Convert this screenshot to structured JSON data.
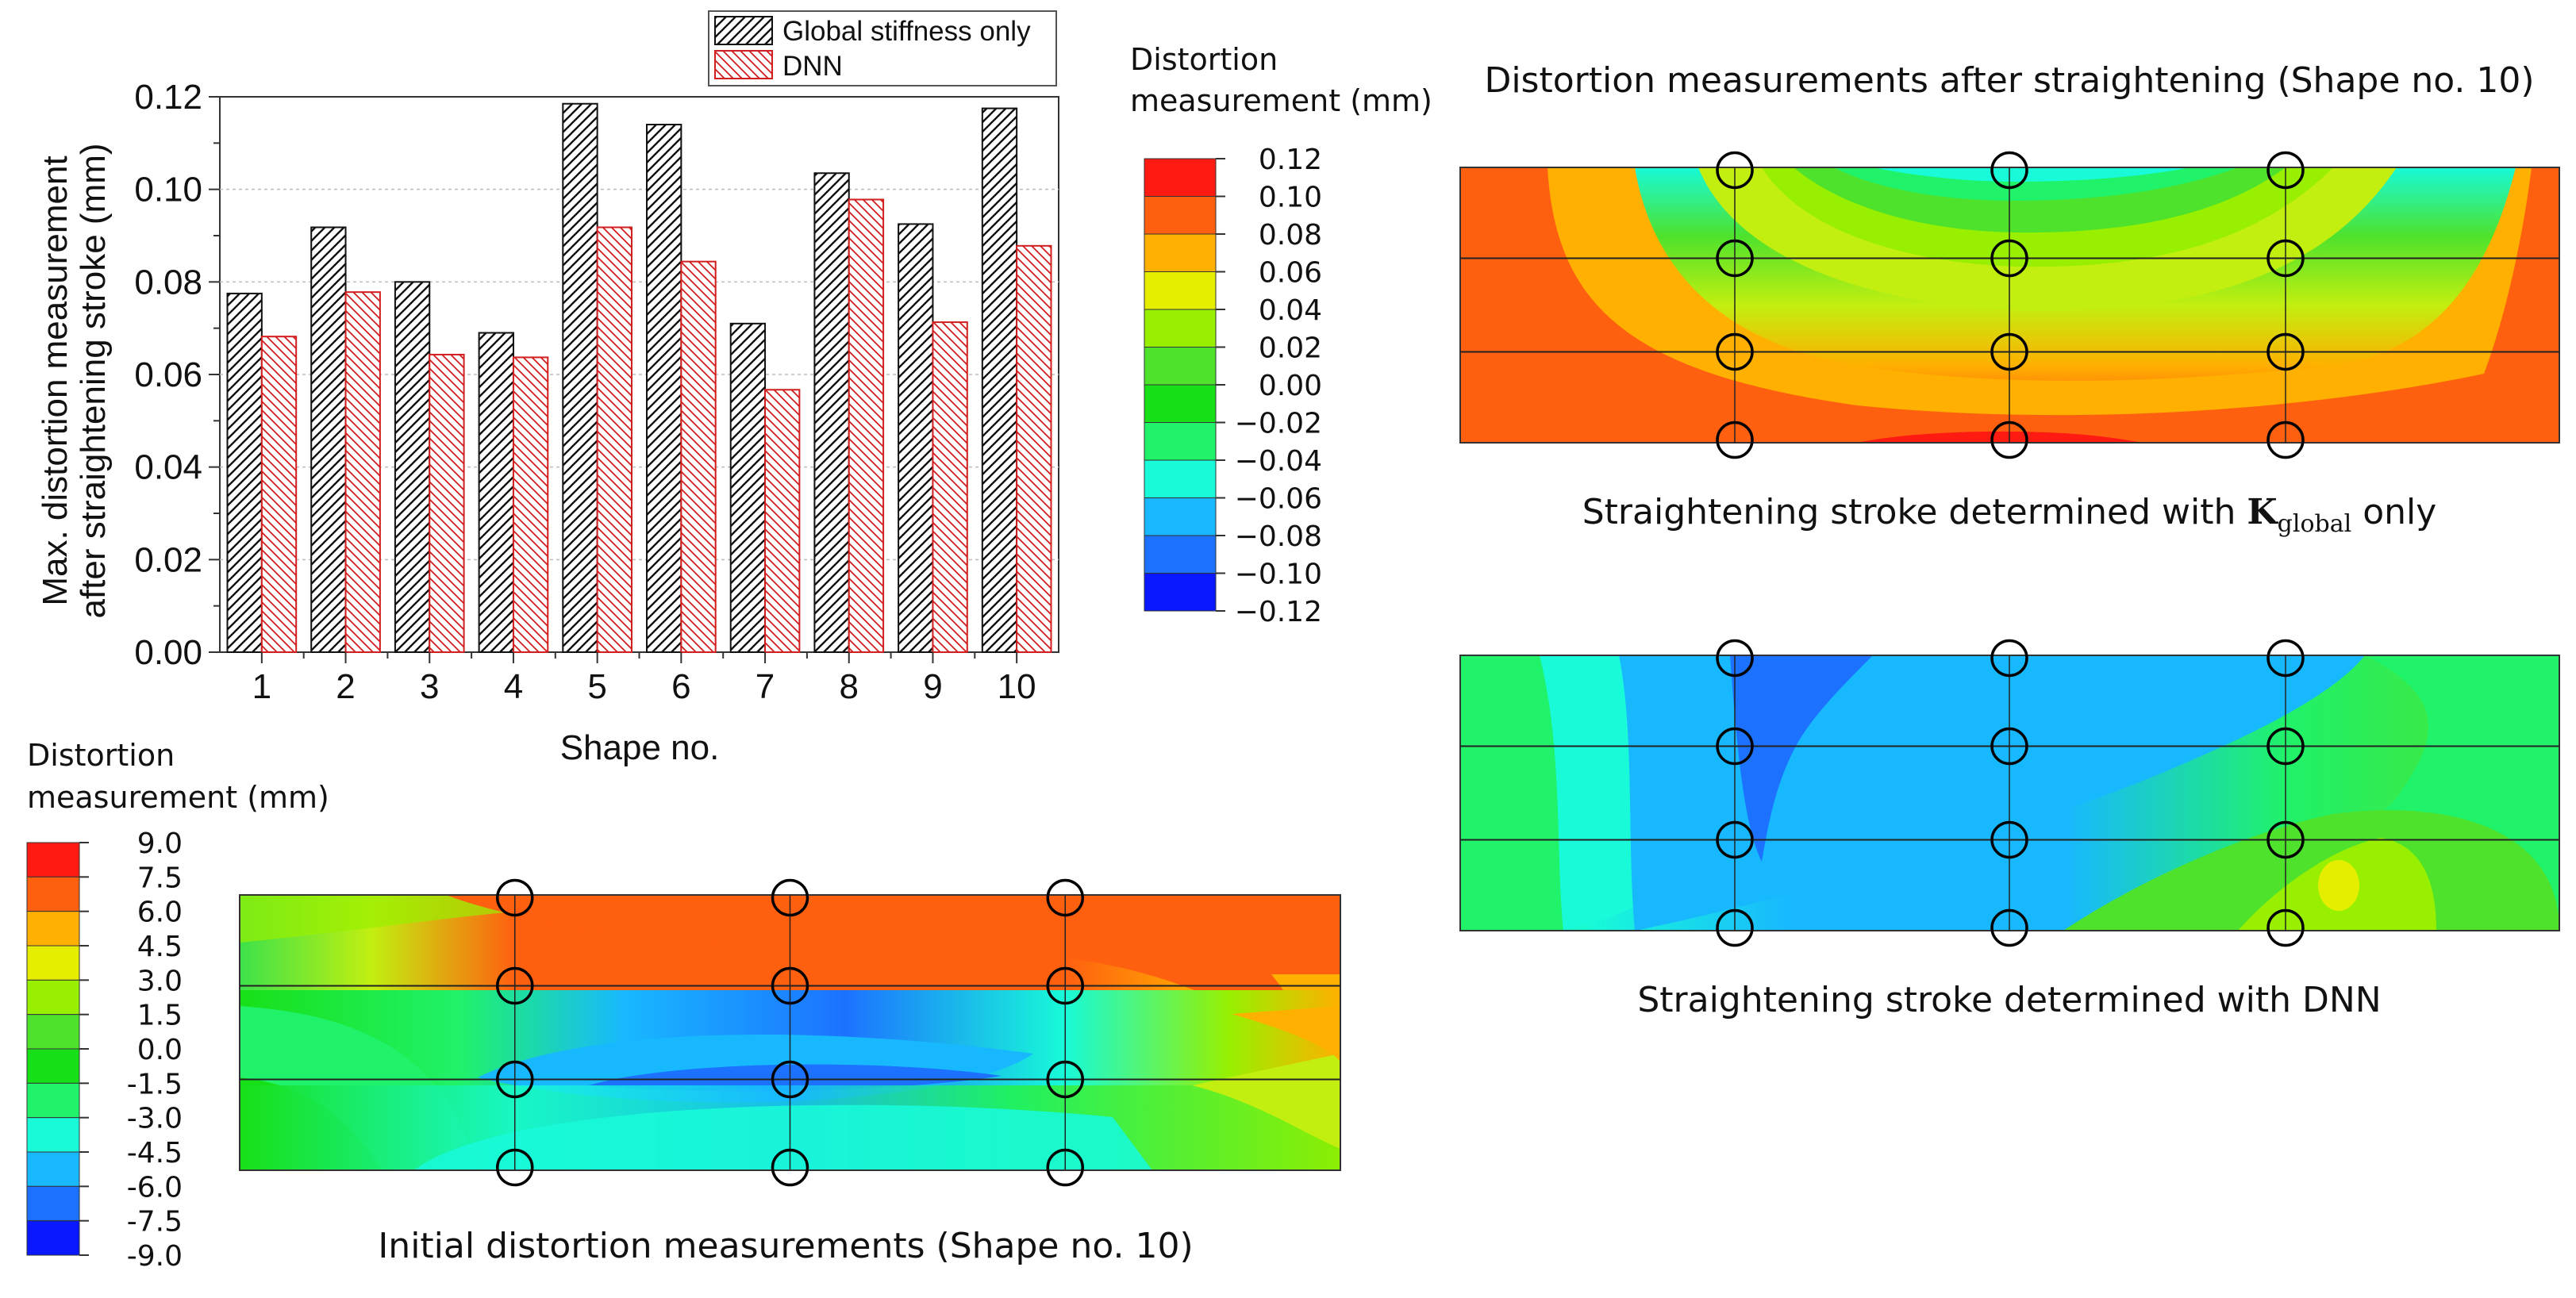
{
  "chart_data": [
    {
      "type": "bar",
      "title": "",
      "xlabel": "Shape no.",
      "ylabel": [
        "Max. distortion measurement",
        "after straightening stroke (mm)"
      ],
      "categories": [
        "1",
        "2",
        "3",
        "4",
        "5",
        "6",
        "7",
        "8",
        "9",
        "10"
      ],
      "series": [
        {
          "name": "Global stiffness only",
          "values": [
            0.0775,
            0.0918,
            0.08,
            0.069,
            0.1185,
            0.114,
            0.071,
            0.1035,
            0.0925,
            0.1175
          ],
          "color": "#111111"
        },
        {
          "name": "DNN",
          "values": [
            0.0682,
            0.0778,
            0.0643,
            0.0637,
            0.0918,
            0.0844,
            0.0567,
            0.0978,
            0.0713,
            0.0878
          ],
          "color": "#d62728"
        }
      ],
      "ylim": [
        0,
        0.12
      ],
      "yticks": [
        "0.00",
        "0.02",
        "0.04",
        "0.06",
        "0.08",
        "0.10",
        "0.12"
      ],
      "legend_position": "top-right"
    },
    {
      "type": "heatmap",
      "title": "Initial distortion measurements (Shape no. 10)",
      "colorbar_title": [
        "Distortion",
        "measurement (mm)"
      ],
      "colorbar_ticks": [
        "9.0",
        "7.5",
        "6.0",
        "4.5",
        "3.0",
        "1.5",
        "0.0",
        "-1.5",
        "-3.0",
        "-4.5",
        "-6.0",
        "-7.5",
        "-9.0"
      ],
      "colorbar_colors": [
        "#ff1a12",
        "#ff6010",
        "#ffb000",
        "#e6ee00",
        "#98f000",
        "#4ee22c",
        "#18e018",
        "#20f26a",
        "#18fad8",
        "#18b8ff",
        "#1c72ff",
        "#0a18ff"
      ]
    },
    {
      "type": "heatmap",
      "title": "Distortion measurements after straightening (Shape no. 10)",
      "caption_prefix": "Straightening stroke determined with",
      "caption_symbol": "K",
      "caption_subscript": "global",
      "caption_suffix": "only",
      "colorbar_title": [
        "Distortion",
        "measurement (mm)"
      ],
      "colorbar_ticks": [
        "0.12",
        "0.10",
        "0.08",
        "0.06",
        "0.04",
        "0.02",
        "0.00",
        "−0.02",
        "−0.04",
        "−0.06",
        "−0.08",
        "−0.10",
        "−0.12"
      ],
      "colorbar_colors": [
        "#ff1a12",
        "#ff6010",
        "#ffb000",
        "#e6ee00",
        "#98f000",
        "#4ee22c",
        "#18e018",
        "#20f26a",
        "#18fad8",
        "#18b8ff",
        "#1c72ff",
        "#0a18ff"
      ]
    },
    {
      "type": "heatmap",
      "title": "Straightening stroke determined with DNN"
    }
  ]
}
